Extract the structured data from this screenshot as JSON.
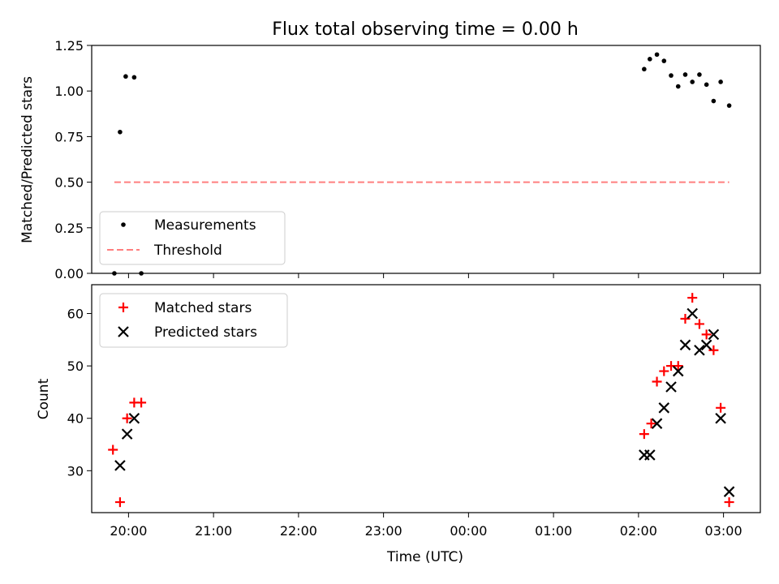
{
  "chart_data": [
    {
      "type": "scatter",
      "title": "Flux total observing time = 0.00 h",
      "ylabel": "Matched/Predicted stars",
      "xlabel": "",
      "ylim": [
        0,
        1.25
      ],
      "yticks": [
        "0.00",
        "0.25",
        "0.50",
        "0.75",
        "1.00",
        "1.25"
      ],
      "xlim": [
        "19:34",
        "03:26"
      ],
      "legend": "bottom-left",
      "series": [
        {
          "name": "Measurements",
          "color": "#000000",
          "marker": "dot",
          "points": [
            [
              "19:50",
              0.0
            ],
            [
              "19:54",
              0.775
            ],
            [
              "19:58",
              1.08
            ],
            [
              "20:04",
              1.075
            ],
            [
              "20:09",
              0.0
            ],
            [
              "02:04",
              1.12
            ],
            [
              "02:08",
              1.175
            ],
            [
              "02:13",
              1.2
            ],
            [
              "02:18",
              1.165
            ],
            [
              "02:23",
              1.085
            ],
            [
              "02:28",
              1.025
            ],
            [
              "02:33",
              1.09
            ],
            [
              "02:38",
              1.05
            ],
            [
              "02:43",
              1.09
            ],
            [
              "02:48",
              1.035
            ],
            [
              "02:53",
              0.945
            ],
            [
              "02:58",
              1.05
            ],
            [
              "03:04",
              0.92
            ]
          ]
        },
        {
          "name": "Threshold",
          "color": "#ff7f7f",
          "style": "dashed",
          "line": [
            [
              "19:50",
              0.5
            ],
            [
              "03:04",
              0.5
            ]
          ]
        }
      ]
    },
    {
      "type": "scatter",
      "ylabel": "Count",
      "xlabel": "Time (UTC)",
      "ylim": [
        22,
        65.5
      ],
      "yticks": [
        "30",
        "40",
        "50",
        "60"
      ],
      "xticks": [
        "20:00",
        "21:00",
        "22:00",
        "23:00",
        "00:00",
        "01:00",
        "02:00",
        "03:00"
      ],
      "legend": "top-left",
      "series": [
        {
          "name": "Matched stars",
          "color": "#ff0000",
          "marker": "plus",
          "points": [
            [
              "19:49",
              34
            ],
            [
              "19:54",
              24
            ],
            [
              "19:59",
              40
            ],
            [
              "20:04",
              43
            ],
            [
              "20:09",
              43
            ],
            [
              "02:04",
              37
            ],
            [
              "02:09",
              39
            ],
            [
              "02:13",
              47
            ],
            [
              "02:18",
              49
            ],
            [
              "02:23",
              50
            ],
            [
              "02:28",
              50
            ],
            [
              "02:33",
              59
            ],
            [
              "02:38",
              63
            ],
            [
              "02:43",
              58
            ],
            [
              "02:48",
              56
            ],
            [
              "02:53",
              53
            ],
            [
              "02:58",
              42
            ],
            [
              "03:04",
              24
            ]
          ]
        },
        {
          "name": "Predicted stars",
          "color": "#000000",
          "marker": "x",
          "points": [
            [
              "19:54",
              31
            ],
            [
              "19:59",
              37
            ],
            [
              "20:04",
              40
            ],
            [
              "02:04",
              33
            ],
            [
              "02:08",
              33
            ],
            [
              "02:13",
              39
            ],
            [
              "02:18",
              42
            ],
            [
              "02:23",
              46
            ],
            [
              "02:28",
              49
            ],
            [
              "02:33",
              54
            ],
            [
              "02:38",
              60
            ],
            [
              "02:43",
              53
            ],
            [
              "02:48",
              54
            ],
            [
              "02:53",
              56
            ],
            [
              "02:58",
              40
            ],
            [
              "03:04",
              26
            ]
          ]
        }
      ]
    }
  ]
}
